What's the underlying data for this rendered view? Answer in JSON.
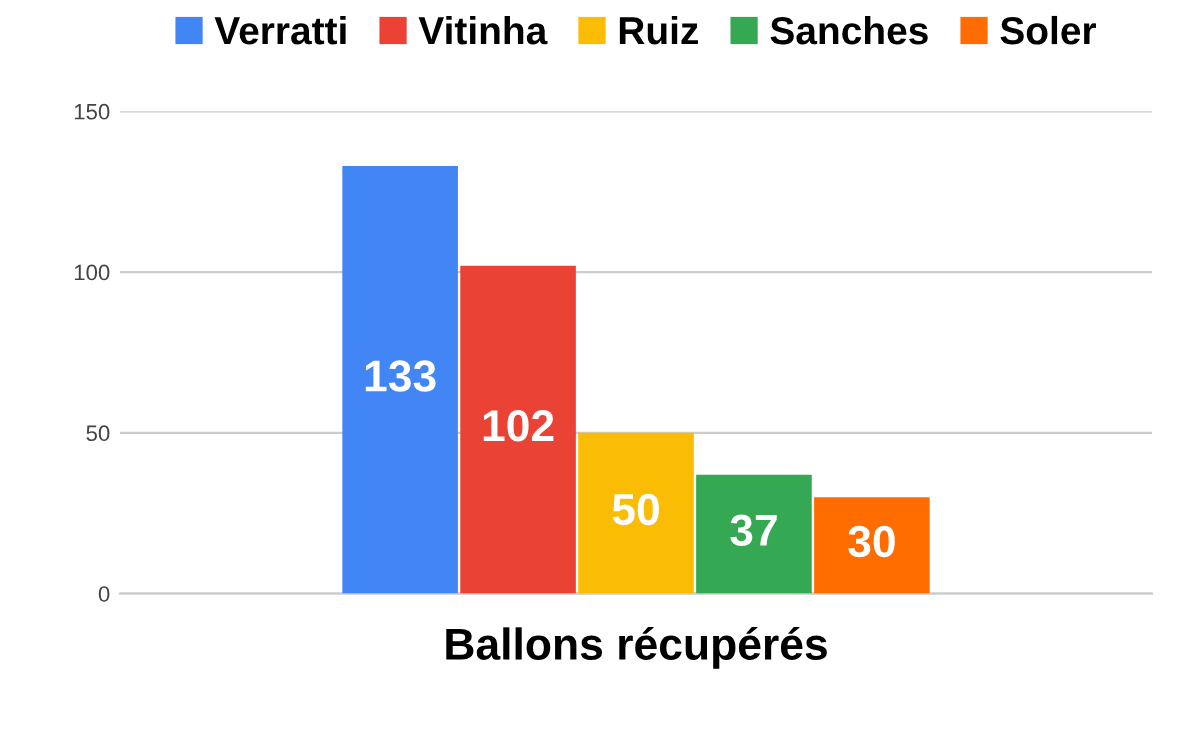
{
  "chart_data": {
    "type": "bar",
    "categories": [
      "Ballons récupérés"
    ],
    "series": [
      {
        "name": "Verratti",
        "color": "#4285f4",
        "values": [
          133
        ]
      },
      {
        "name": "Vitinha",
        "color": "#ea4335",
        "values": [
          102
        ]
      },
      {
        "name": "Ruiz",
        "color": "#fbbc04",
        "values": [
          50
        ]
      },
      {
        "name": "Sanches",
        "color": "#34a853",
        "values": [
          37
        ]
      },
      {
        "name": "Soler",
        "color": "#ff6d01",
        "values": [
          30
        ]
      }
    ],
    "ylim": [
      0,
      150
    ],
    "yticks": [
      0,
      50,
      100,
      150
    ],
    "grid": "y",
    "legend": "top",
    "data_labels": true
  }
}
